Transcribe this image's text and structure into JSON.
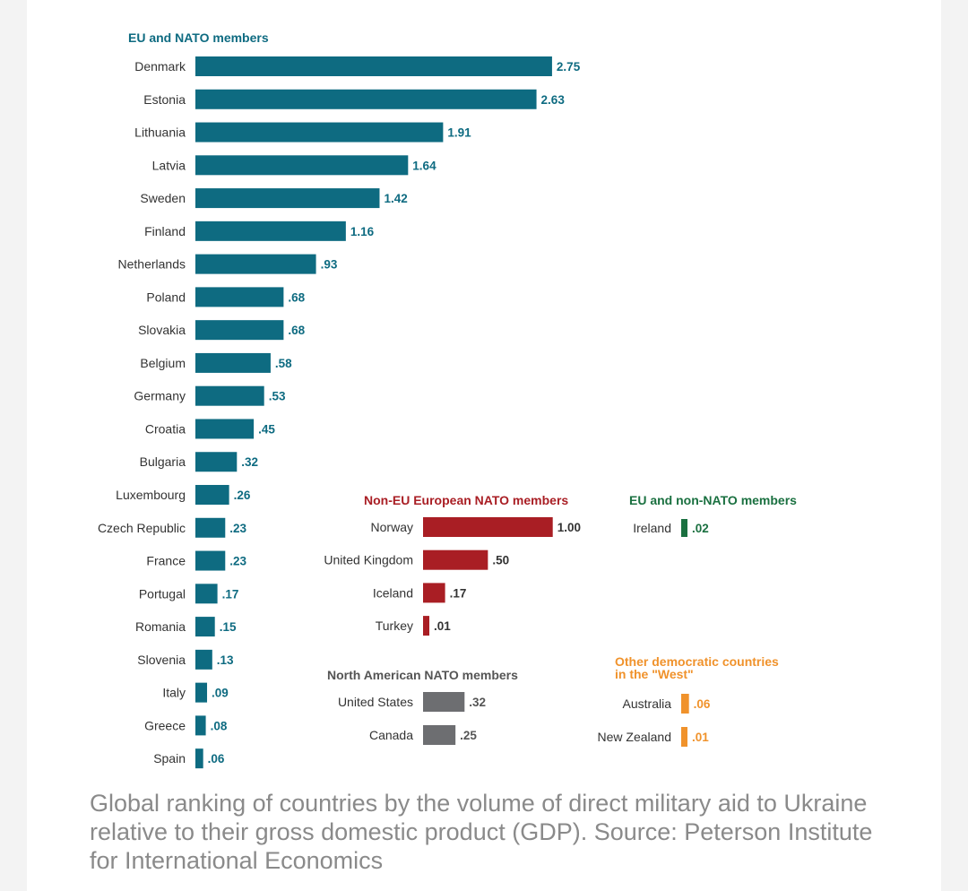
{
  "chart_data": {
    "type": "bar",
    "orientation": "horizontal",
    "groups": [
      {
        "title": "EU and NATO members",
        "color": "#0e6b81",
        "title_color": "#0e6b81",
        "label_color": "#0e6b81",
        "categories": [
          "Denmark",
          "Estonia",
          "Lithuania",
          "Latvia",
          "Sweden",
          "Finland",
          "Netherlands",
          "Poland",
          "Slovakia",
          "Belgium",
          "Germany",
          "Croatia",
          "Bulgaria",
          "Luxembourg",
          "Czech Republic",
          "France",
          "Portugal",
          "Romania",
          "Slovenia",
          "Italy",
          "Greece",
          "Spain"
        ],
        "values": [
          2.75,
          2.63,
          1.91,
          1.64,
          1.42,
          1.16,
          0.93,
          0.68,
          0.68,
          0.58,
          0.53,
          0.45,
          0.32,
          0.26,
          0.23,
          0.23,
          0.17,
          0.15,
          0.13,
          0.09,
          0.08,
          0.06
        ],
        "value_labels": [
          "2.75",
          "2.63",
          "1.91",
          "1.64",
          "1.42",
          "1.16",
          ".93",
          ".68",
          ".68",
          ".58",
          ".53",
          ".45",
          ".32",
          ".26",
          ".23",
          ".23",
          ".17",
          ".15",
          ".13",
          ".09",
          ".08",
          ".06"
        ]
      },
      {
        "title": "Non-EU European NATO members",
        "color": "#a91e24",
        "title_color": "#a91e24",
        "label_color": "#333333",
        "categories": [
          "Norway",
          "United Kingdom",
          "Iceland",
          "Turkey"
        ],
        "values": [
          1.0,
          0.5,
          0.17,
          0.01
        ],
        "value_labels": [
          "1.00",
          ".50",
          ".17",
          ".01"
        ]
      },
      {
        "title": "North American NATO members",
        "color": "#6d6e71",
        "title_color": "#555555",
        "label_color": "#555555",
        "categories": [
          "United States",
          "Canada"
        ],
        "values": [
          0.32,
          0.25
        ],
        "value_labels": [
          ".32",
          ".25"
        ]
      },
      {
        "title": "EU and non-NATO members",
        "color": "#1a7040",
        "title_color": "#1a7040",
        "label_color": "#1a7040",
        "categories": [
          "Ireland"
        ],
        "values": [
          0.02
        ],
        "value_labels": [
          ".02"
        ]
      },
      {
        "title": "Other democratic countries in the \"West\"",
        "title_lines": [
          "Other democratic countries",
          "in the \"West\""
        ],
        "color": "#f0922b",
        "title_color": "#f0922b",
        "label_color": "#f0922b",
        "categories": [
          "Australia",
          "New Zealand"
        ],
        "values": [
          0.06,
          0.01
        ],
        "value_labels": [
          ".06",
          ".01"
        ]
      }
    ],
    "xlabel": "",
    "ylabel": "",
    "grid": false
  },
  "caption": "Global ranking of countries by the volume of direct military aid to Ukraine relative to their gross domestic product (GDP). Source: Peterson Institute for International Economics"
}
